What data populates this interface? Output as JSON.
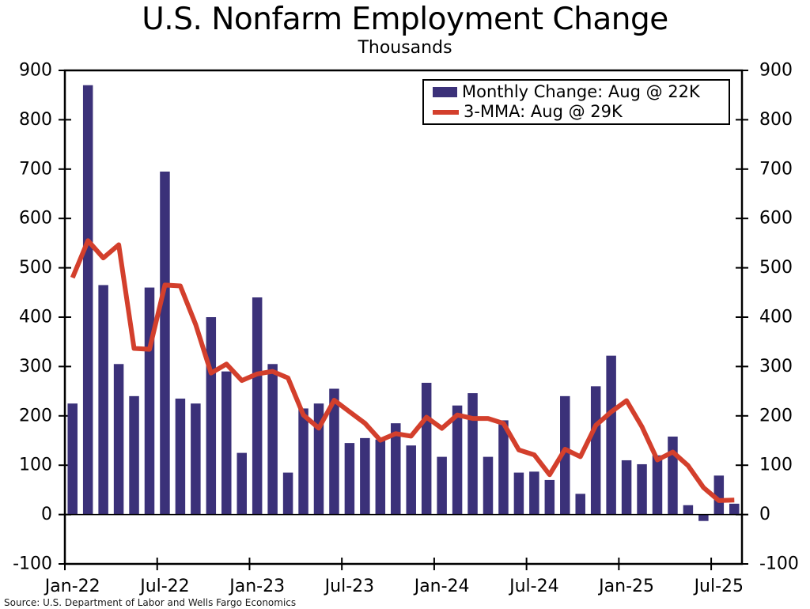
{
  "title": "U.S. Nonfarm Employment Change",
  "subtitle": "Thousands",
  "source": "Source: U.S. Department of Labor and Wells Fargo Economics",
  "colors": {
    "bar": "#3b3179",
    "line": "#d33f2c",
    "axis": "#000000",
    "background": "#ffffff"
  },
  "legend": {
    "position": "top-right",
    "items": [
      {
        "label": "Monthly Change: Aug @ 22K",
        "swatch": "bar"
      },
      {
        "label": "3-MMA: Aug @ 29K",
        "swatch": "line"
      }
    ]
  },
  "chart_data": {
    "type": "bar",
    "title": "U.S. Nonfarm Employment Change",
    "subtitle": "Thousands",
    "unit": "thousands",
    "grid": false,
    "legend_position": "top-right",
    "ylim": [
      -100,
      900
    ],
    "ytick_step": 100,
    "yticks": [
      900,
      800,
      700,
      600,
      500,
      400,
      300,
      200,
      100,
      0,
      -100
    ],
    "xtick_labels": [
      "Jan-22",
      "Jul-22",
      "Jan-23",
      "Jul-23",
      "Jan-24",
      "Jul-24",
      "Jan-25",
      "Jul-25"
    ],
    "x": [
      "Jan-22",
      "Feb-22",
      "Mar-22",
      "Apr-22",
      "May-22",
      "Jun-22",
      "Jul-22",
      "Aug-22",
      "Sep-22",
      "Oct-22",
      "Nov-22",
      "Dec-22",
      "Jan-23",
      "Feb-23",
      "Mar-23",
      "Apr-23",
      "May-23",
      "Jun-23",
      "Jul-23",
      "Aug-23",
      "Sep-23",
      "Oct-23",
      "Nov-23",
      "Dec-23",
      "Jan-24",
      "Feb-24",
      "Mar-24",
      "Apr-24",
      "May-24",
      "Jun-24",
      "Jul-24",
      "Aug-24",
      "Sep-24",
      "Oct-24",
      "Nov-24",
      "Dec-24",
      "Jan-25",
      "Feb-25",
      "Mar-25",
      "Apr-25",
      "May-25",
      "Jun-25",
      "Jul-25",
      "Aug-25"
    ],
    "series": [
      {
        "name": "Monthly Change",
        "type": "bar",
        "color": "#3b3179",
        "values": [
          225,
          870,
          465,
          305,
          240,
          460,
          695,
          235,
          225,
          400,
          290,
          125,
          440,
          305,
          85,
          215,
          225,
          255,
          145,
          155,
          152,
          185,
          140,
          267,
          117,
          221,
          246,
          117,
          191,
          85,
          87,
          70,
          240,
          42,
          260,
          322,
          110,
          102,
          120,
          158,
          19,
          -13,
          79,
          22
        ]
      },
      {
        "name": "3-MMA",
        "type": "line",
        "color": "#d33f2c",
        "values": [
          480,
          555,
          520,
          546.7,
          336.7,
          335,
          465,
          463.3,
          385,
          286.7,
          305,
          271.7,
          285,
          290,
          276.7,
          201.7,
          175,
          231.7,
          208.3,
          185,
          150.7,
          164,
          159,
          197.3,
          174.7,
          201.7,
          194.7,
          194.7,
          184.7,
          131,
          121,
          80.7,
          132.3,
          117.3,
          180.7,
          208,
          230.7,
          178,
          110.7,
          126.7,
          99,
          54.7,
          28.3,
          29.3
        ]
      }
    ]
  }
}
